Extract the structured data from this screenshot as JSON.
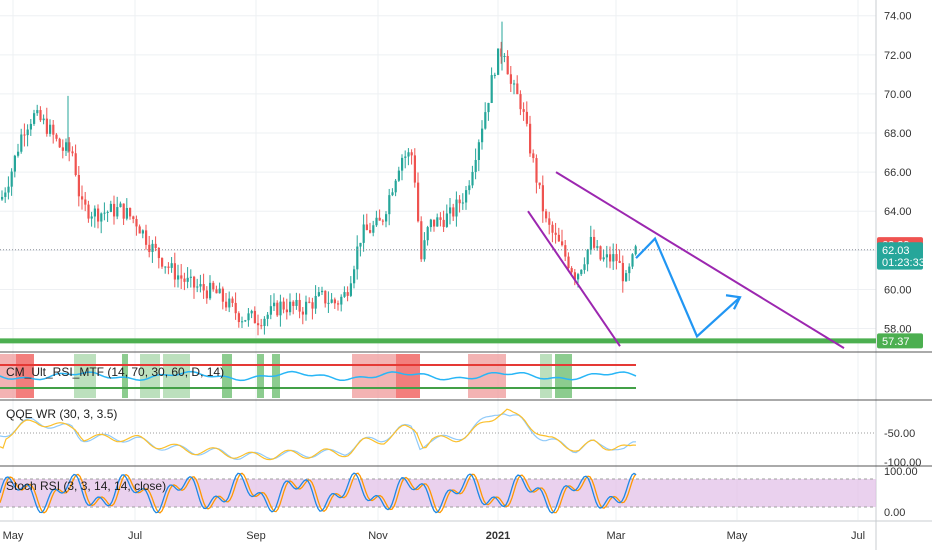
{
  "chart_data": {
    "type": "candlestick",
    "symbol_title": "",
    "x_axis": {
      "ticks": [
        "May",
        "Jul",
        "Sep",
        "Nov",
        "2021",
        "Mar",
        "May",
        "Jul"
      ]
    },
    "y_axis": {
      "ticks": [
        "74.00",
        "72.00",
        "70.00",
        "68.00",
        "66.00",
        "64.00",
        "62.00",
        "60.00",
        "58.00"
      ],
      "range": [
        56.8,
        74.6
      ]
    },
    "price_badges": [
      {
        "label": "62.29",
        "value": 62.29,
        "color": "#ef5350"
      },
      {
        "label": "62.03",
        "value": 62.03,
        "color": "#26a69a"
      },
      {
        "label": "01:23:33",
        "value": 61.4,
        "color": "#26a69a"
      },
      {
        "label": "57.37",
        "value": 57.37,
        "color": "#4caf50"
      }
    ],
    "last_price": 62.03,
    "support_level": 57.37,
    "colors": {
      "up": "#26a69a",
      "down": "#ef5350",
      "support": "#4caf50",
      "wedge": "#9c27b0",
      "projection": "#2196f3"
    },
    "price_path": [
      [
        0,
        64.6
      ],
      [
        10,
        66.0
      ],
      [
        22,
        68.2
      ],
      [
        32,
        68.9
      ],
      [
        45,
        68.4
      ],
      [
        60,
        67.2
      ],
      [
        72,
        67.0
      ],
      [
        80,
        64.2
      ],
      [
        95,
        63.9
      ],
      [
        120,
        64.1
      ],
      [
        135,
        63.5
      ],
      [
        150,
        62.2
      ],
      [
        170,
        61.0
      ],
      [
        190,
        60.2
      ],
      [
        215,
        59.8
      ],
      [
        240,
        58.6
      ],
      [
        258,
        58.5
      ],
      [
        270,
        58.8
      ],
      [
        280,
        59.2
      ],
      [
        300,
        59.0
      ],
      [
        320,
        59.6
      ],
      [
        335,
        59.3
      ],
      [
        345,
        59.8
      ],
      [
        360,
        62.8
      ],
      [
        380,
        63.4
      ],
      [
        400,
        66.8
      ],
      [
        412,
        66.9
      ],
      [
        420,
        61.5
      ],
      [
        428,
        63.3
      ],
      [
        450,
        63.8
      ],
      [
        465,
        65.0
      ],
      [
        478,
        67.8
      ],
      [
        488,
        70.0
      ],
      [
        495,
        71.7
      ],
      [
        503,
        72.4
      ],
      [
        510,
        70.4
      ],
      [
        520,
        69.5
      ],
      [
        532,
        66.5
      ],
      [
        545,
        63.4
      ],
      [
        560,
        62.1
      ],
      [
        575,
        60.7
      ],
      [
        590,
        62.4
      ],
      [
        600,
        61.5
      ],
      [
        615,
        61.6
      ],
      [
        625,
        60.4
      ],
      [
        635,
        62.0
      ]
    ],
    "trendlines": [
      {
        "name": "wedge-upper",
        "points": [
          [
            556,
            66.0
          ],
          [
            844,
            57.0
          ]
        ]
      },
      {
        "name": "wedge-lower",
        "points": [
          [
            528,
            64.0
          ],
          [
            620,
            57.1
          ]
        ]
      }
    ],
    "projection": [
      [
        636,
        61.6
      ],
      [
        655,
        62.6
      ],
      [
        697,
        57.6
      ],
      [
        740,
        59.6
      ]
    ],
    "indicators": [
      {
        "label": "CM_Ult_RSI_MTF (14, 70, 30, 60, D, 14)"
      },
      {
        "label": "QQE WR (30, 3, 3.5)",
        "axis_ticks": [
          "-50.00",
          "-100.00"
        ]
      },
      {
        "label": "Stoch RSI (3, 3, 14, 14, close)",
        "axis_ticks": [
          "100.00",
          "0.00"
        ]
      }
    ]
  }
}
